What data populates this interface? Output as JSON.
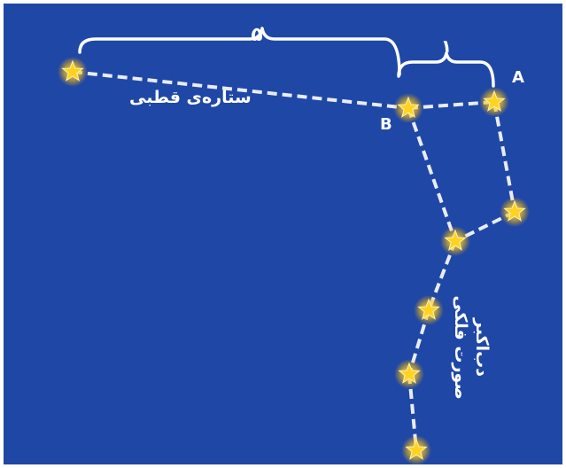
{
  "labels": {
    "ratio_large": "۵",
    "ratio_small": "۱",
    "star_a": "A",
    "star_b": "B",
    "polaris": "ستاره‌ی قطبی",
    "constellation_line1": "صورت فلکی",
    "constellation_line2": "دب‌اکبر"
  },
  "colors": {
    "sky": "#1f47a6",
    "line": "#e8ecf6",
    "star_fill": "#ffd21f",
    "star_glow": "#ffb000",
    "text": "#ffffff"
  }
}
